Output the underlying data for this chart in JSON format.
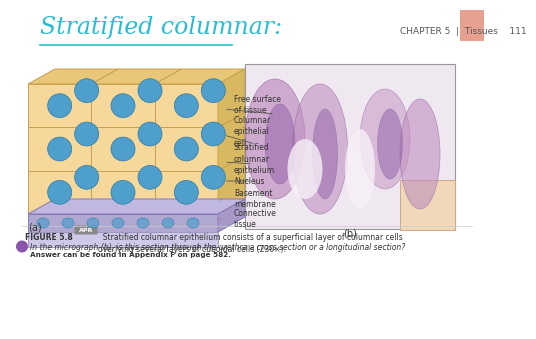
{
  "title": "Stratified columnar:",
  "title_color": "#2bbcd4",
  "bg_color": "#ffffff",
  "chapter_text": "CHAPTER 5  |  Tissues    111",
  "chapter_color": "#555555",
  "page_tab_color": "#e8a090",
  "label_a": "(a)",
  "label_b": "(b)",
  "labels": [
    "Free surface\nof tissue",
    "Columnar\nepithelial\ncell",
    "Stratified\ncolumnar\nepithelium",
    "Nucleus",
    "Basement\nmembrane",
    "Connective\ntissue"
  ],
  "figure_caption_bold": "FIGURE 5.8",
  "figure_caption_rest": "  Stratified columnar epithelium consists of a superficial layer of columnar cells\noverlying several layers of cuboidal cells (230×).",
  "question": "In the micrograph (b), is this section through the urethra a cross section or a longitudinal section?",
  "answer": "Answer can be found in Appendix F on page 582.",
  "cell_fill": "#f5d89a",
  "cell_outline": "#c8a050",
  "cell_fill_top": "#e8c878",
  "cell_fill_side": "#d8b860",
  "nucleus_fill": "#4f9fcc",
  "nucleus_edge": "#2b7aaa",
  "base_layer_fill": "#b0a8d0",
  "base_top_fill": "#c0b8e0",
  "base_side_fill": "#a898c8",
  "base_edge": "#8878b8",
  "connective_fill": "#d0c8e8",
  "connective_edge": "#a098c0",
  "micro_bg": "#f0e8f0",
  "micro_edge": "#999999",
  "blob_fill": "#c090c0",
  "blob_edge": "#9060a0",
  "dark_blob_fill": "#9060a8",
  "dark_blob_edge": "#604080",
  "light_blob_fill": "#f8f0f8",
  "body_fill": "#f0d8b8",
  "body_edge": "#d0a888",
  "label_color": "#333333",
  "arrow_color": "#555555",
  "badge_fill": "#888888",
  "question_circle": "#8855aa",
  "separator_color": "#cccccc"
}
